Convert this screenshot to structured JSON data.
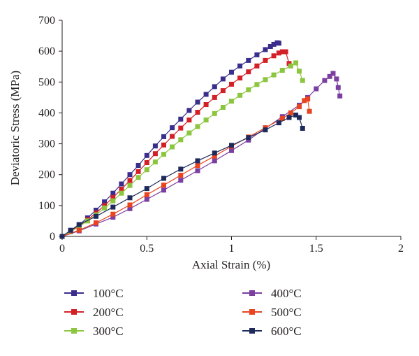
{
  "chart_data": {
    "type": "line",
    "title": "",
    "xlabel": "Axial Strain (%)",
    "ylabel": "Deviatoric Stress (MPa)",
    "xlim": [
      0,
      2
    ],
    "ylim": [
      0,
      700
    ],
    "xticks": [
      0,
      0.5,
      1,
      1.5,
      2
    ],
    "xtick_labels": [
      "0",
      "0.5",
      "1",
      "1.5",
      "2"
    ],
    "yticks": [
      0,
      100,
      200,
      300,
      400,
      500,
      600,
      700
    ],
    "ytick_labels": [
      "0",
      "100",
      "200",
      "300",
      "400",
      "500",
      "600",
      "700"
    ],
    "grid": false,
    "legend_position": "bottom",
    "series": [
      {
        "name": "100°C",
        "color": "#3a2e8c",
        "marker": "square",
        "x": [
          0,
          0.05,
          0.1,
          0.15,
          0.2,
          0.25,
          0.3,
          0.35,
          0.4,
          0.45,
          0.5,
          0.55,
          0.6,
          0.65,
          0.7,
          0.75,
          0.8,
          0.85,
          0.9,
          0.95,
          1.0,
          1.05,
          1.1,
          1.15,
          1.2,
          1.23,
          1.25,
          1.27,
          1.28
        ],
        "y": [
          0,
          18,
          38,
          60,
          85,
          112,
          140,
          170,
          200,
          230,
          262,
          293,
          323,
          352,
          380,
          408,
          435,
          460,
          485,
          510,
          532,
          552,
          570,
          588,
          605,
          615,
          622,
          627,
          626
        ]
      },
      {
        "name": "200°C",
        "color": "#d32027",
        "marker": "square",
        "x": [
          0,
          0.05,
          0.1,
          0.15,
          0.2,
          0.25,
          0.3,
          0.35,
          0.4,
          0.45,
          0.5,
          0.55,
          0.6,
          0.65,
          0.7,
          0.75,
          0.8,
          0.85,
          0.9,
          0.95,
          1.0,
          1.05,
          1.1,
          1.15,
          1.2,
          1.25,
          1.28,
          1.3,
          1.32,
          1.34
        ],
        "y": [
          0,
          16,
          34,
          54,
          76,
          100,
          126,
          153,
          181,
          210,
          239,
          268,
          296,
          324,
          351,
          377,
          402,
          427,
          450,
          472,
          493,
          513,
          533,
          552,
          570,
          585,
          594,
          598,
          598,
          560
        ]
      },
      {
        "name": "300°C",
        "color": "#8cc63f",
        "marker": "square",
        "x": [
          0,
          0.05,
          0.1,
          0.15,
          0.2,
          0.25,
          0.3,
          0.35,
          0.4,
          0.45,
          0.5,
          0.55,
          0.6,
          0.65,
          0.7,
          0.75,
          0.8,
          0.85,
          0.9,
          0.95,
          1.0,
          1.05,
          1.1,
          1.15,
          1.2,
          1.25,
          1.3,
          1.35,
          1.38,
          1.4,
          1.42
        ],
        "y": [
          0,
          15,
          32,
          50,
          70,
          92,
          115,
          140,
          165,
          191,
          216,
          241,
          266,
          290,
          313,
          335,
          356,
          377,
          398,
          418,
          438,
          457,
          475,
          492,
          508,
          523,
          538,
          552,
          562,
          535,
          505
        ]
      },
      {
        "name": "400°C",
        "color": "#7a3fa0",
        "marker": "square",
        "x": [
          0,
          0.1,
          0.2,
          0.3,
          0.4,
          0.5,
          0.6,
          0.7,
          0.8,
          0.9,
          1.0,
          1.1,
          1.2,
          1.3,
          1.4,
          1.45,
          1.5,
          1.55,
          1.58,
          1.6,
          1.62,
          1.63,
          1.64
        ],
        "y": [
          0,
          18,
          40,
          62,
          90,
          120,
          150,
          182,
          213,
          245,
          278,
          312,
          350,
          388,
          425,
          450,
          478,
          505,
          518,
          528,
          510,
          482,
          455
        ]
      },
      {
        "name": "500°C",
        "color": "#e8441f",
        "marker": "square",
        "x": [
          0,
          0.1,
          0.2,
          0.3,
          0.4,
          0.5,
          0.6,
          0.7,
          0.8,
          0.9,
          1.0,
          1.1,
          1.2,
          1.3,
          1.35,
          1.4,
          1.43,
          1.45,
          1.46
        ],
        "y": [
          0,
          20,
          44,
          72,
          102,
          135,
          166,
          198,
          230,
          260,
          292,
          322,
          352,
          382,
          400,
          420,
          440,
          445,
          405
        ]
      },
      {
        "name": "600°C",
        "color": "#1f2a5c",
        "marker": "square",
        "x": [
          0,
          0.05,
          0.1,
          0.2,
          0.3,
          0.4,
          0.5,
          0.6,
          0.7,
          0.8,
          0.9,
          1.0,
          1.1,
          1.2,
          1.28,
          1.34,
          1.38,
          1.4,
          1.42
        ],
        "y": [
          0,
          20,
          38,
          65,
          95,
          125,
          155,
          188,
          218,
          245,
          270,
          295,
          320,
          345,
          368,
          385,
          393,
          385,
          350
        ]
      }
    ]
  }
}
